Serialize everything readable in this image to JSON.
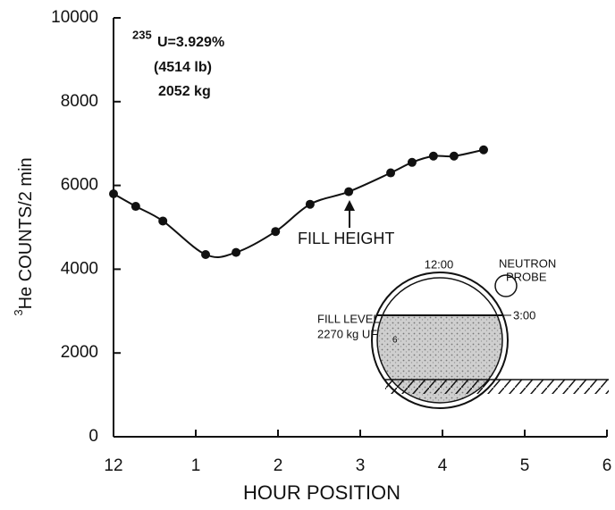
{
  "chart_data": {
    "type": "scatter",
    "xlabel": "HOUR POSITION",
    "ylabel_sup": "3",
    "ylabel": "He COUNTS/2 min",
    "x": [
      0,
      0.27,
      0.6,
      1.12,
      1.49,
      1.97,
      2.39,
      2.86,
      3.37,
      3.63,
      3.89,
      4.14,
      4.5
    ],
    "values": [
      5800,
      5500,
      5150,
      4350,
      4400,
      4900,
      5550,
      5850,
      6300,
      6550,
      6700,
      6700,
      6850
    ],
    "color": "#111111",
    "xlim": [
      0,
      6
    ],
    "xticks": [
      {
        "value": 0,
        "label": "12"
      },
      1,
      2,
      3,
      4,
      5,
      6
    ],
    "ylim": [
      0,
      10000
    ],
    "yticks": [
      0,
      2000,
      4000,
      6000,
      8000,
      10000
    ],
    "annotations": {
      "isotope_sup": "235",
      "enrichment": "U=3.929%",
      "mass_lb": "(4514 lb)",
      "mass_kg": "2052 kg",
      "fill_height": "FILL HEIGHT",
      "clock_12": "12:00",
      "probe_1": "NEUTRON",
      "probe_2": "PROBE",
      "clock_3": "3:00",
      "fill_level": "FILL LEVEL",
      "fill_mass": "2270 kg UF",
      "fill_mass_sub": "6"
    }
  }
}
